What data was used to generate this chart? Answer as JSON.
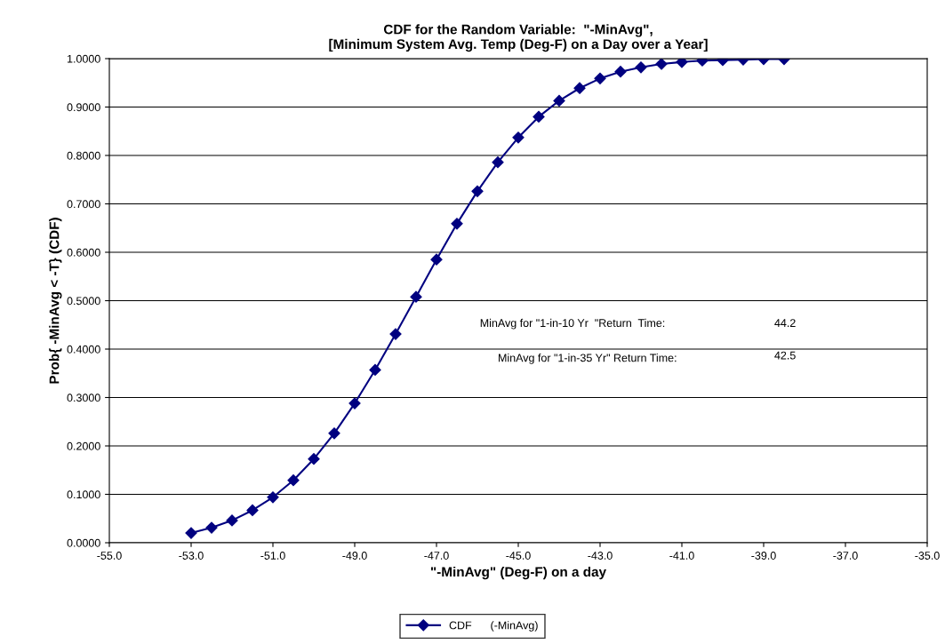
{
  "chart_data": {
    "type": "line",
    "title": "CDF for the Random Variable:  \"-MinAvg\",\n[Minimum System Avg. Temp (Deg-F) on a Day over a Year]",
    "xlabel": "\"-MinAvg\" (Deg-F) on a day",
    "ylabel": "Prob{ -MinAvg < -T} (CDF)",
    "annotations": [
      "MinAvg for \"1-in-10 Yr  \"Return  Time:",
      "44.2",
      "MinAvg for \"1-in-35 Yr\" Return Time:",
      "42.5"
    ],
    "x": [
      -53.0,
      -52.5,
      -52.0,
      -51.5,
      -51.0,
      -50.5,
      -50.0,
      -49.5,
      -49.0,
      -48.5,
      -48.0,
      -47.5,
      -47.0,
      -46.5,
      -46.0,
      -45.5,
      -45.0,
      -44.5,
      -44.0,
      -43.5,
      -43.0,
      -42.5,
      -42.0,
      -41.5,
      -41.0,
      -40.5,
      -40.0,
      -39.5,
      -39.0,
      -38.5
    ],
    "series": [
      {
        "name": "CDF      (-MinAvg)",
        "color": "#000080",
        "values": [
          0.02,
          0.031,
          0.046,
          0.067,
          0.094,
          0.129,
          0.173,
          0.226,
          0.288,
          0.357,
          0.431,
          0.508,
          0.585,
          0.659,
          0.726,
          0.786,
          0.837,
          0.88,
          0.913,
          0.939,
          0.959,
          0.973,
          0.982,
          0.989,
          0.993,
          0.996,
          0.997,
          0.998,
          0.999,
          0.999
        ]
      }
    ],
    "xlim": [
      -55.0,
      -35.0
    ],
    "xticks": [
      {
        "value": -55,
        "label": "-55.0"
      },
      {
        "value": -53,
        "label": "-53.0"
      },
      {
        "value": -51,
        "label": "-51.0"
      },
      {
        "value": -49,
        "label": "-49.0"
      },
      {
        "value": -47,
        "label": "-47.0"
      },
      {
        "value": -45,
        "label": "-45.0"
      },
      {
        "value": -43,
        "label": "-43.0"
      },
      {
        "value": -41,
        "label": "-41.0"
      },
      {
        "value": -39,
        "label": "-39.0"
      },
      {
        "value": -37,
        "label": "-37.0"
      },
      {
        "value": -35,
        "label": "-35.0"
      }
    ],
    "ylim": [
      0,
      1
    ],
    "yticks": [
      {
        "value": 0,
        "label": "0.0000"
      },
      {
        "value": 0.1,
        "label": "0.1000"
      },
      {
        "value": 0.2,
        "label": "0.2000"
      },
      {
        "value": 0.3,
        "label": "0.3000"
      },
      {
        "value": 0.4,
        "label": "0.4000"
      },
      {
        "value": 0.5,
        "label": "0.5000"
      },
      {
        "value": 0.6,
        "label": "0.6000"
      },
      {
        "value": 0.7,
        "label": "0.7000"
      },
      {
        "value": 0.8,
        "label": "0.8000"
      },
      {
        "value": 0.9,
        "label": "0.9000"
      },
      {
        "value": 1.0,
        "label": "1.0000"
      }
    ],
    "grid": "y",
    "legend": "bottom",
    "marker": "diamond",
    "line_style": "solid"
  }
}
